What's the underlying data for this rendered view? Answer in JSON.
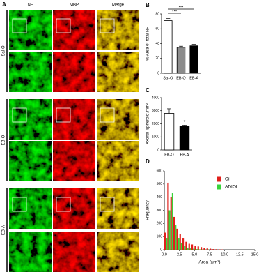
{
  "panel_a": {
    "panel_label": "A",
    "columns": [
      "NF",
      "MBP",
      "Merge"
    ],
    "rows": [
      "Sal-O",
      "EB-O",
      "EB-A"
    ]
  },
  "chart_data": [
    {
      "type": "bar",
      "panel_label": "B",
      "ylabel": "% Area of total NF",
      "categories": [
        "Sal-O",
        "EB-O",
        "EB-A"
      ],
      "values": [
        71,
        35,
        37
      ],
      "errors": [
        3,
        1.5,
        2
      ],
      "colors": [
        "#ffffff",
        "#8c8c8c",
        "#000000"
      ],
      "ylim": [
        0,
        80
      ],
      "yticks": [
        0,
        20,
        40,
        60,
        80
      ],
      "annotations": [
        "***",
        "***"
      ]
    },
    {
      "type": "bar",
      "panel_label": "C",
      "ylabel": "Axonal 'spheroid'/mm²",
      "categories": [
        "EB-O",
        "EB-A"
      ],
      "values": [
        2800,
        1800
      ],
      "errors": [
        350,
        100
      ],
      "colors": [
        "#ffffff",
        "#000000"
      ],
      "ylim": [
        0,
        4000
      ],
      "yticks": [
        0,
        1000,
        2000,
        3000,
        4000
      ],
      "annotations": [
        "*"
      ]
    },
    {
      "type": "histogram",
      "panel_label": "D",
      "ylabel": "Frequency",
      "xlabel": "Area (μm²)",
      "bins": [
        0,
        0.5,
        1,
        1.5,
        2,
        2.5,
        3,
        3.5,
        4,
        4.5,
        5,
        5.5,
        6,
        6.5,
        7,
        7.5,
        8,
        8.5,
        9,
        9.5,
        10
      ],
      "series": [
        {
          "name": "Oil",
          "color": "#e0201b",
          "values": [
            130,
            510,
            400,
            250,
            160,
            120,
            90,
            60,
            45,
            40,
            30,
            25,
            20,
            12,
            10,
            8,
            5,
            4,
            3,
            2
          ]
        },
        {
          "name": "ADIOL",
          "color": "#39d43a",
          "values": [
            90,
            300,
            430,
            190,
            90,
            50,
            30,
            15,
            10,
            8,
            5,
            3,
            2,
            1,
            1,
            0,
            0,
            0,
            0,
            0
          ]
        }
      ],
      "xlim": [
        0,
        15
      ],
      "xticks": [
        {
          "value": 0,
          "label": "0.0"
        },
        2.5,
        {
          "value": 5,
          "label": "5.0"
        },
        7.5,
        {
          "value": 10,
          "label": "10.0"
        },
        12.5,
        {
          "value": 15,
          "label": "15.0"
        }
      ],
      "ylim": [
        0,
        600
      ],
      "yticks": [
        0,
        100,
        200,
        300,
        400,
        500,
        600
      ],
      "legend": "upper right"
    }
  ]
}
